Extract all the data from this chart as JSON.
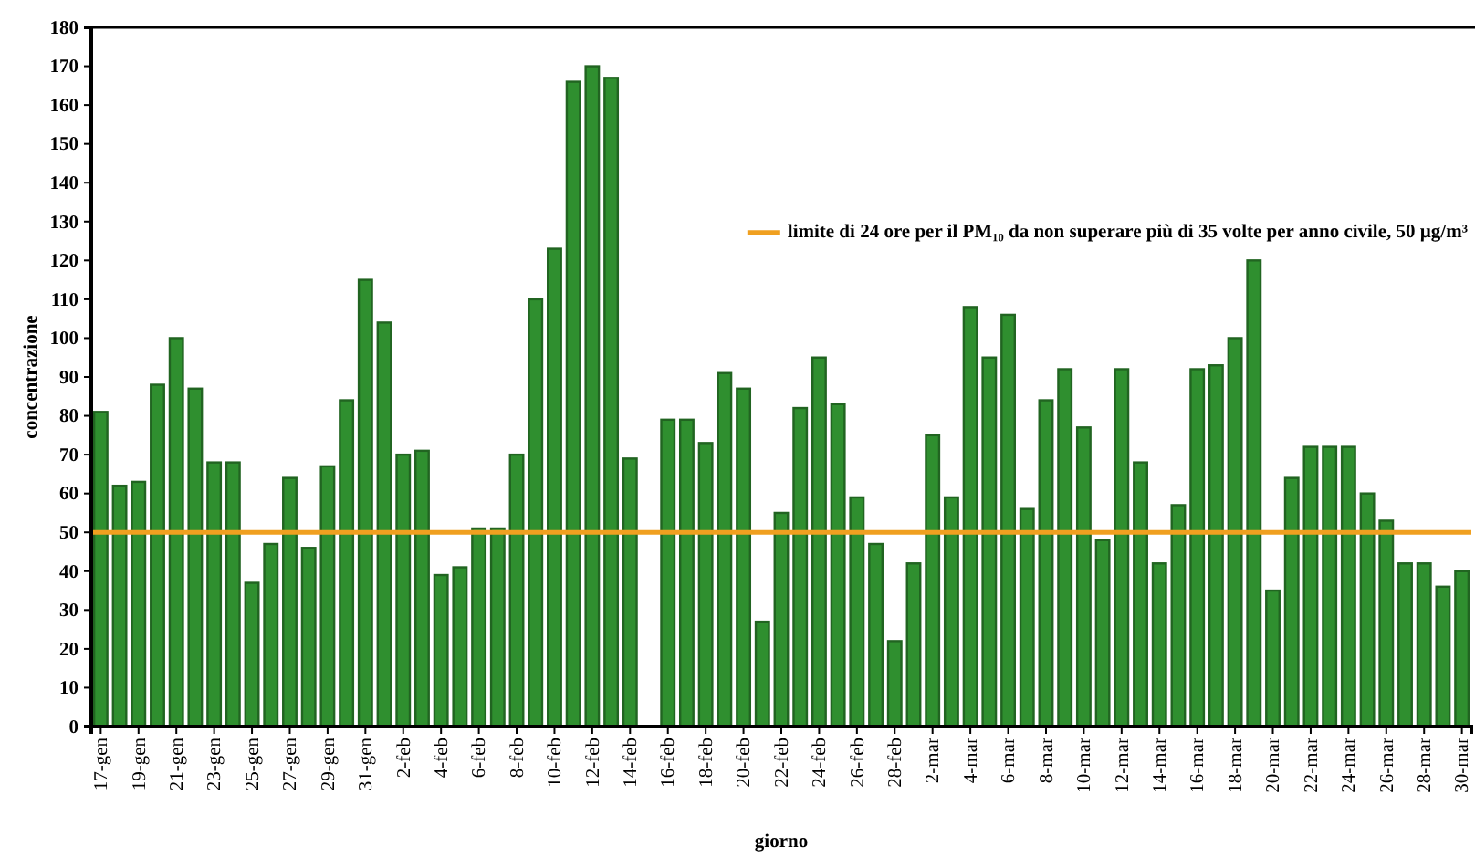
{
  "chart_data": {
    "type": "bar",
    "xlabel": "giorno",
    "ylabel": "concentrazione",
    "categories": [
      "17-gen",
      null,
      "19-gen",
      null,
      "21-gen",
      null,
      "23-gen",
      null,
      "25-gen",
      null,
      "27-gen",
      null,
      "29-gen",
      null,
      "31-gen",
      null,
      "2-feb",
      null,
      "4-feb",
      null,
      "6-feb",
      null,
      "8-feb",
      null,
      "10-feb",
      null,
      "12-feb",
      null,
      "14-feb",
      null,
      "16-feb",
      null,
      "18-feb",
      null,
      "20-feb",
      null,
      "22-feb",
      null,
      "24-feb",
      null,
      "26-feb",
      null,
      "28-feb",
      null,
      "2-mar",
      null,
      "4-mar",
      null,
      "6-mar",
      null,
      "8-mar",
      null,
      "10-mar",
      null,
      "12-mar",
      null,
      "14-mar",
      null,
      "16-mar",
      null,
      "18-mar",
      null,
      "20-mar",
      null,
      "22-mar",
      null,
      "24-mar",
      null,
      "26-mar",
      null,
      "28-mar",
      null,
      "30-mar"
    ],
    "values": [
      81,
      62,
      63,
      88,
      100,
      87,
      68,
      68,
      37,
      47,
      64,
      46,
      67,
      84,
      115,
      104,
      70,
      71,
      39,
      41,
      51,
      51,
      70,
      110,
      123,
      166,
      170,
      167,
      69,
      null,
      79,
      79,
      73,
      91,
      87,
      27,
      55,
      82,
      95,
      83,
      59,
      47,
      22,
      42,
      75,
      59,
      108,
      95,
      106,
      56,
      84,
      92,
      77,
      48,
      92,
      68,
      42,
      57,
      92,
      93,
      100,
      120,
      35,
      64,
      72,
      72,
      72,
      60,
      53,
      42,
      42,
      36,
      40
    ],
    "color": "#2f8f2f",
    "ylim": [
      0,
      180
    ],
    "yticks": [
      0,
      10,
      20,
      30,
      40,
      50,
      60,
      70,
      80,
      90,
      100,
      110,
      120,
      130,
      140,
      150,
      160,
      170,
      180
    ],
    "grid": false,
    "ref_lines": [
      {
        "axis": "y",
        "value": 50,
        "label": "limite di 24 ore per il PM₁₀ da non superare più di 35 volte per anno civile, 50 µg/m³",
        "color": "#f0a020"
      }
    ]
  }
}
